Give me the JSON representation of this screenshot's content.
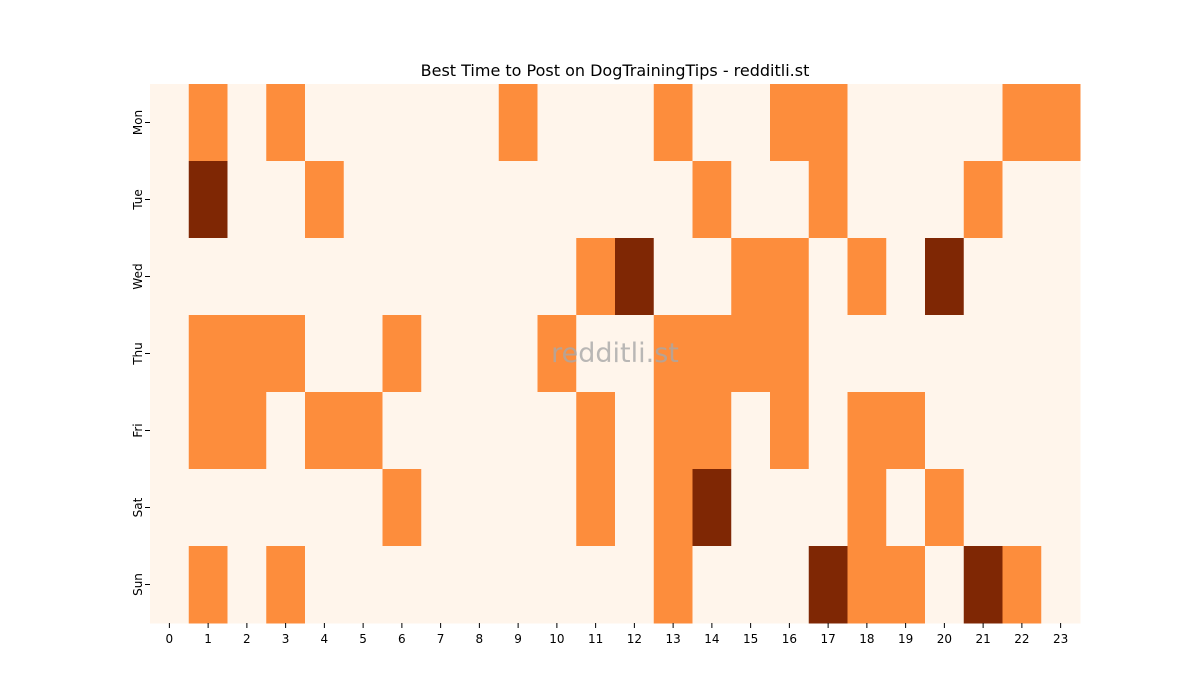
{
  "chart_data": {
    "type": "heatmap",
    "title": "Best Time to Post on DogTrainingTips - redditli.st",
    "xlabel": "",
    "ylabel": "",
    "x_categories": [
      "0",
      "1",
      "2",
      "3",
      "4",
      "5",
      "6",
      "7",
      "8",
      "9",
      "10",
      "11",
      "12",
      "13",
      "14",
      "15",
      "16",
      "17",
      "18",
      "19",
      "20",
      "21",
      "22",
      "23"
    ],
    "y_categories": [
      "Mon",
      "Tue",
      "Wed",
      "Thu",
      "Fri",
      "Sat",
      "Sun"
    ],
    "values": [
      [
        0,
        1,
        0,
        1,
        0,
        0,
        0,
        0,
        0,
        1,
        0,
        0,
        0,
        1,
        0,
        0,
        1,
        1,
        0,
        0,
        0,
        0,
        1,
        1
      ],
      [
        0,
        2,
        0,
        0,
        1,
        0,
        0,
        0,
        0,
        0,
        0,
        0,
        0,
        0,
        1,
        0,
        0,
        1,
        0,
        0,
        0,
        1,
        0,
        0
      ],
      [
        0,
        0,
        0,
        0,
        0,
        0,
        0,
        0,
        0,
        0,
        0,
        1,
        2,
        0,
        0,
        1,
        1,
        0,
        1,
        0,
        2,
        0,
        0,
        0
      ],
      [
        0,
        1,
        1,
        1,
        0,
        0,
        1,
        0,
        0,
        0,
        1,
        0,
        0,
        1,
        1,
        1,
        1,
        0,
        0,
        0,
        0,
        0,
        0,
        0
      ],
      [
        0,
        1,
        1,
        0,
        1,
        1,
        0,
        0,
        0,
        0,
        0,
        1,
        0,
        1,
        1,
        0,
        1,
        0,
        1,
        1,
        0,
        0,
        0,
        0
      ],
      [
        0,
        0,
        0,
        0,
        0,
        0,
        1,
        0,
        0,
        0,
        0,
        1,
        0,
        1,
        2,
        0,
        0,
        0,
        1,
        0,
        1,
        0,
        0,
        0
      ],
      [
        0,
        1,
        0,
        1,
        0,
        0,
        0,
        0,
        0,
        0,
        0,
        0,
        0,
        1,
        0,
        0,
        0,
        2,
        1,
        1,
        0,
        2,
        1,
        0
      ]
    ],
    "colorscale": [
      "#fff5eb",
      "#fd8d3c",
      "#7f2704"
    ],
    "watermark": "redditli.st"
  }
}
